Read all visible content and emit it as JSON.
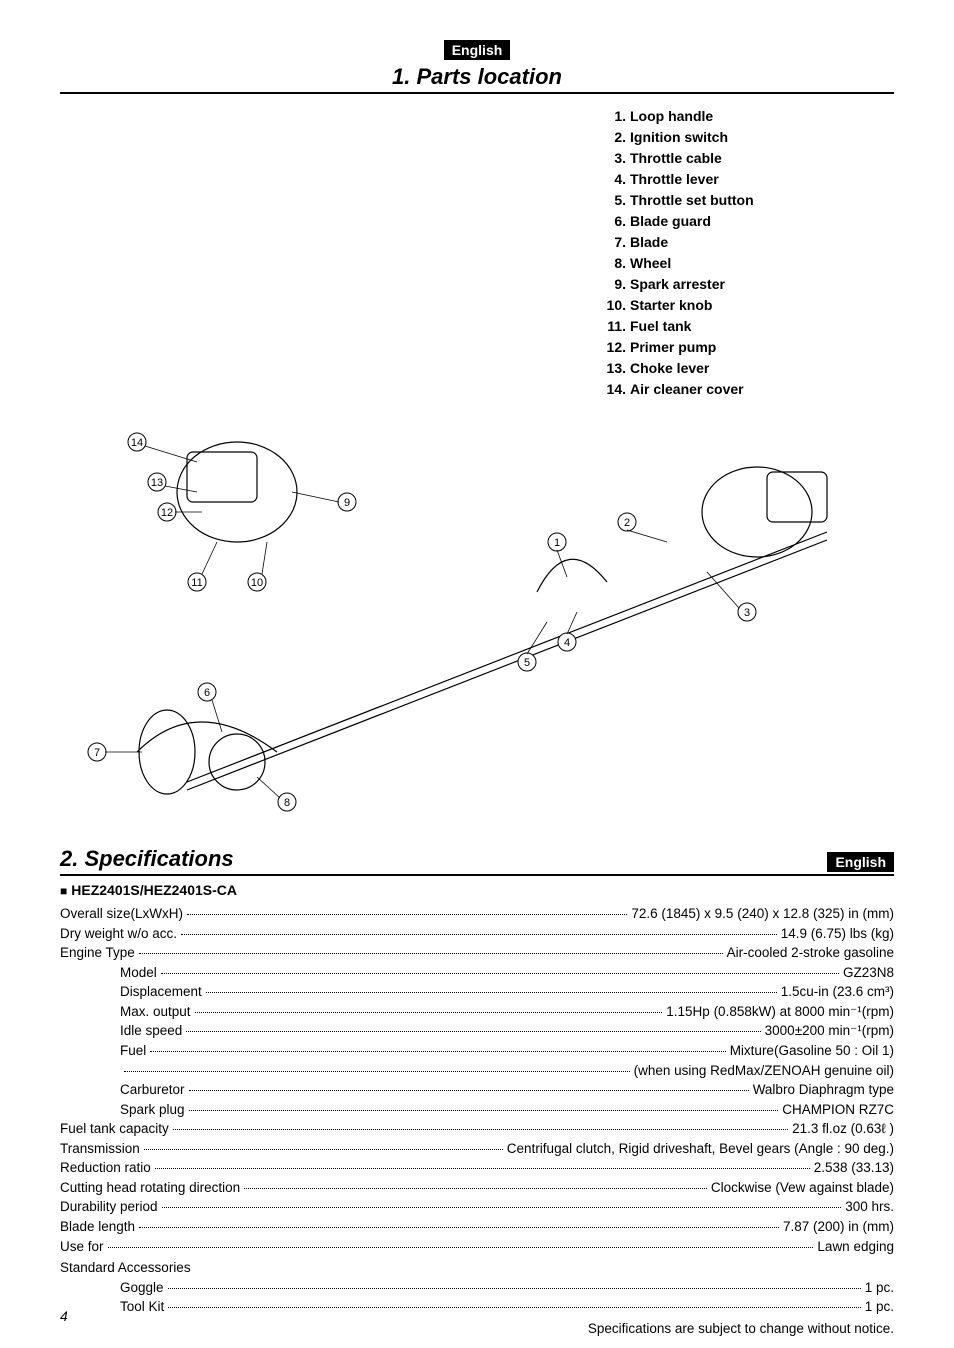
{
  "lang_badge": "English",
  "section1": {
    "title": "1. Parts location",
    "parts": [
      {
        "num": "1.",
        "label": "Loop handle"
      },
      {
        "num": "2.",
        "label": "Ignition switch"
      },
      {
        "num": "3.",
        "label": "Throttle cable"
      },
      {
        "num": "4.",
        "label": "Throttle lever"
      },
      {
        "num": "5.",
        "label": "Throttle set button"
      },
      {
        "num": "6.",
        "label": "Blade guard"
      },
      {
        "num": "7.",
        "label": "Blade"
      },
      {
        "num": "8.",
        "label": "Wheel"
      },
      {
        "num": "9.",
        "label": "Spark arrester"
      },
      {
        "num": "10.",
        "label": "Starter knob"
      },
      {
        "num": "11.",
        "label": "Fuel tank"
      },
      {
        "num": "12.",
        "label": "Primer pump"
      },
      {
        "num": "13.",
        "label": "Choke lever"
      },
      {
        "num": "14.",
        "label": "Air cleaner cover"
      }
    ],
    "callouts": [
      "1",
      "2",
      "3",
      "4",
      "5",
      "6",
      "7",
      "8",
      "9",
      "10",
      "11",
      "12",
      "13",
      "14"
    ]
  },
  "section2": {
    "title": "2. Specifications",
    "model_heading": "HEZ2401S/HEZ2401S-CA",
    "specs": [
      {
        "label": "Overall size(LxWxH)",
        "value": "72.6 (1845) x 9.5 (240) x 12.8 (325) in (mm)",
        "indent": false
      },
      {
        "label": "Dry weight w/o acc.",
        "value": "14.9 (6.75) lbs (kg)",
        "indent": false
      },
      {
        "label": "Engine   Type",
        "value": "Air-cooled 2-stroke gasoline",
        "indent": false
      },
      {
        "label": "Model",
        "value": "GZ23N8",
        "indent": true
      },
      {
        "label": "Displacement",
        "value": "1.5cu-in (23.6 cm³)",
        "indent": true
      },
      {
        "label": "Max. output",
        "value": "1.15Hp (0.858kW) at 8000 min⁻¹(rpm)",
        "indent": true
      },
      {
        "label": "Idle speed",
        "value": "3000±200 min⁻¹(rpm)",
        "indent": true
      },
      {
        "label": "Fuel",
        "value": "Mixture(Gasoline 50 : Oil 1)",
        "indent": true
      },
      {
        "label": "",
        "value": "(when using  RedMax/ZENOAH genuine oil)",
        "indent": true
      },
      {
        "label": "Carburetor",
        "value": "Walbro Diaphragm type",
        "indent": true
      },
      {
        "label": "Spark plug",
        "value": "CHAMPION RZ7C",
        "indent": true
      },
      {
        "label": "Fuel tank capacity",
        "value": "21.3 fl.oz (0.63ℓ )",
        "indent": false
      },
      {
        "label": "Transmission",
        "value": "Centrifugal clutch, Rigid driveshaft, Bevel gears (Angle : 90 deg.)",
        "indent": false
      },
      {
        "label": "Reduction ratio",
        "value": "2.538 (33.13)",
        "indent": false
      },
      {
        "label": "Cutting head rotating direction",
        "value": "Clockwise (Vew against blade)",
        "indent": false
      },
      {
        "label": "Durability period",
        "value": "300 hrs.",
        "indent": false
      },
      {
        "label": "Blade length",
        "value": "7.87 (200) in (mm)",
        "indent": false
      },
      {
        "label": "Use for",
        "value": "Lawn edging",
        "indent": false
      }
    ],
    "accessories_heading": "Standard Accessories",
    "accessories": [
      {
        "label": "Goggle",
        "value": "1 pc."
      },
      {
        "label": "Tool Kit",
        "value": "1 pc."
      }
    ],
    "footnote": "Specifications are subject to change without notice."
  },
  "page_number": "4",
  "colors": {
    "text": "#000000",
    "background": "#ffffff",
    "badge_bg": "#000000",
    "badge_fg": "#ffffff"
  },
  "typography": {
    "body_font": "Arial, Helvetica, sans-serif",
    "title_fontsize_pt": 16,
    "body_fontsize_pt": 10
  }
}
